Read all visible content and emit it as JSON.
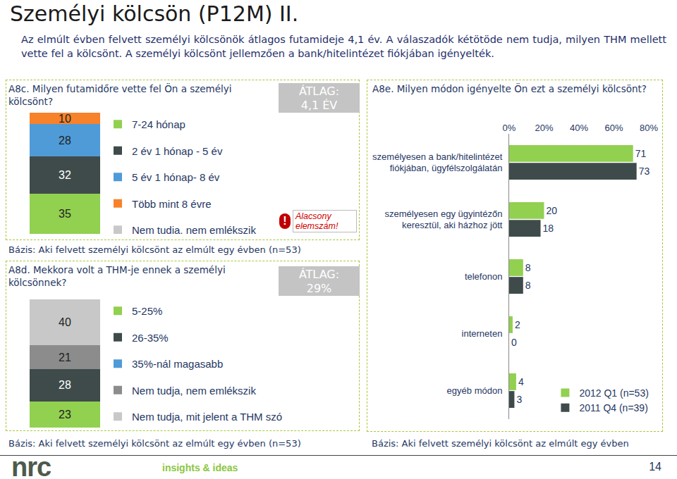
{
  "title": "Személyi kölcsön (P12M) II.",
  "subtitle": "Az elmúlt évben felvett személyi kölcsönök átlagos futamideje 4,1 év. A válaszadók kétötöde nem tudja, milyen THM mellett vette fel a kölcsönt. A személyi kölcsönt jellemzően a bank/hitelintézet fiókjában igényelték.",
  "footer": {
    "logo": "nrc",
    "tagline": "insights & ideas",
    "page": "14"
  },
  "chart_data": [
    {
      "type": "bar",
      "stacked": true,
      "data_labels": true,
      "tick_labels": false,
      "grid": false,
      "legend": "right",
      "title": "A8c. Milyen futamidőre vette fel Ön a személyi kölcsönt?",
      "categories": [
        null
      ],
      "ylim": [
        0,
        105
      ],
      "series": [
        {
          "name": "7-24 hónap",
          "color": "#92d050",
          "values": [
            35
          ]
        },
        {
          "name": "2 év 1 hónap - 5 év",
          "color": "#3f4b4b",
          "values": [
            32
          ]
        },
        {
          "name": "5 év 1 hónap- 8 év",
          "color": "#4f9bd8",
          "values": [
            28
          ]
        },
        {
          "name": "Több mint 8 évre",
          "color": "#f7822a",
          "values": [
            10
          ]
        },
        {
          "name": "Nem tudja, nem emlékszik",
          "color": "#c8c8c8",
          "values": [
            null
          ]
        }
      ],
      "annotations": [
        "ÁTLAG:\n4,1 ÉV",
        "Alacsony elemszám!"
      ],
      "note": "Bázis: Aki felvett személyi kölcsönt az elmúlt egy évben (n=53)"
    },
    {
      "type": "bar",
      "stacked": true,
      "data_labels": true,
      "tick_labels": false,
      "grid": false,
      "legend": "right",
      "title": "A8d. Mekkora volt a THM-je ennek a személyi kölcsönnek?",
      "categories": [
        null
      ],
      "ylim": [
        0,
        112
      ],
      "series": [
        {
          "name": "5-25%",
          "color": "#92d050",
          "values": [
            23
          ]
        },
        {
          "name": "26-35%",
          "color": "#3f4b4b",
          "values": [
            28
          ]
        },
        {
          "name": "35%-nál magasabb",
          "color": "#4f9bd8",
          "values": [
            null
          ]
        },
        {
          "name": "Nem tudja, nem emlékszik",
          "color": "#8c8c8c",
          "values": [
            21
          ]
        },
        {
          "name": "Nem tudja, mit jelent a THM szó",
          "color": "#c8c8c8",
          "values": [
            40
          ]
        }
      ],
      "annotations": [
        "ÁTLAG:\n29%"
      ],
      "note": "Bázis: Aki felvett személyi kölcsönt az elmúlt egy évben (n=53)"
    },
    {
      "type": "bar",
      "orientation": "horizontal",
      "data_labels": true,
      "grid": false,
      "legend": "lower right",
      "title": "A8e. Milyen módon igényelte Ön ezt a személyi kölcsönt?",
      "categories": [
        "személyesen a bank/hitelintézet\nfiókjában, ügyfélszolgálatán",
        "személyesen egy ügyintézőn\nkeresztül, aki házhoz jött",
        "telefonon",
        "interneten",
        "egyéb módon"
      ],
      "xlim": [
        0,
        80
      ],
      "xticks": [
        {
          "value": 0,
          "label": "0%"
        },
        {
          "value": 20,
          "label": "20%"
        },
        {
          "value": 40,
          "label": "40%"
        },
        {
          "value": 60,
          "label": "60%"
        },
        {
          "value": 80,
          "label": "80%"
        }
      ],
      "series": [
        {
          "name": "2012 Q1 (n=53)",
          "color": "#92d050",
          "values": [
            71,
            20,
            8,
            2,
            4
          ]
        },
        {
          "name": "2011 Q4 (n=39)",
          "color": "#3f4b4b",
          "values": [
            73,
            18,
            8,
            0,
            3
          ]
        }
      ],
      "note": "Bázis: Aki felvett személyi kölcsönt az elmúlt egy évben"
    }
  ]
}
